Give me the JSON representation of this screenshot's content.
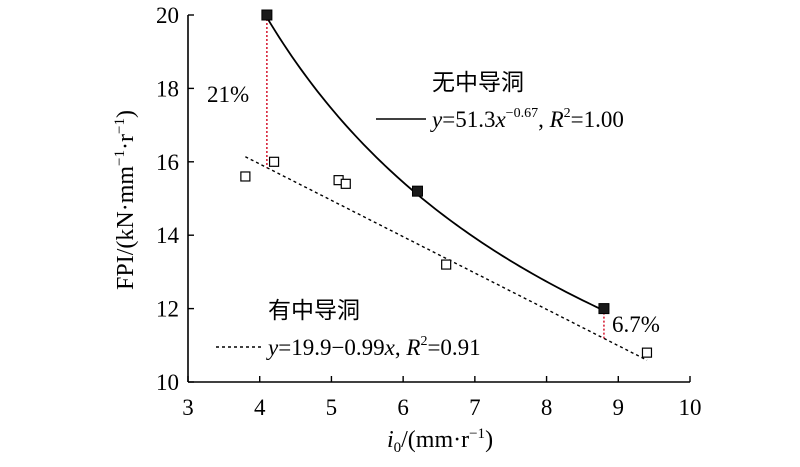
{
  "chart_data": {
    "type": "scatter",
    "xlabel": "i0/(mm·r−1)",
    "ylabel": "FPI/(kN·mm−1·r−1)",
    "xlim": [
      3,
      10
    ],
    "ylim": [
      10,
      20
    ],
    "xticks": [
      "3",
      "4",
      "5",
      "6",
      "7",
      "8",
      "9",
      "10"
    ],
    "yticks": [
      "10",
      "12",
      "14",
      "16",
      "18",
      "20"
    ],
    "grid": false,
    "series": [
      {
        "name": "无中导洞",
        "marker": "filled-square",
        "x": [
          4.1,
          6.2,
          8.8
        ],
        "y": [
          20.0,
          15.2,
          12.0
        ],
        "fit": {
          "label": "y=51.3x^−0.67, R²=1.00",
          "a": 51.3,
          "b": -0.67,
          "range": [
            4.1,
            8.8
          ],
          "style": "solid"
        }
      },
      {
        "name": "有中导洞",
        "marker": "open-square",
        "x": [
          3.8,
          4.2,
          5.1,
          5.2,
          6.6,
          9.4
        ],
        "y": [
          15.6,
          16.0,
          15.5,
          15.4,
          13.2,
          10.8
        ],
        "fit": {
          "label": "y=19.9−0.99x, R²=0.91",
          "intercept": 19.9,
          "slope": -0.99,
          "range": [
            3.8,
            9.4
          ],
          "style": "dashed"
        }
      }
    ],
    "annotations": [
      {
        "text": "21%",
        "x": 4.1,
        "y_from": 20.0,
        "y_to": 15.84
      },
      {
        "text": "6.7%",
        "x": 8.8,
        "y_from": 12.0,
        "y_to": 11.19
      }
    ]
  },
  "colors": {
    "axis": "#000000",
    "marker": "#1a1a1a",
    "annotation_line": "#d0021b"
  }
}
